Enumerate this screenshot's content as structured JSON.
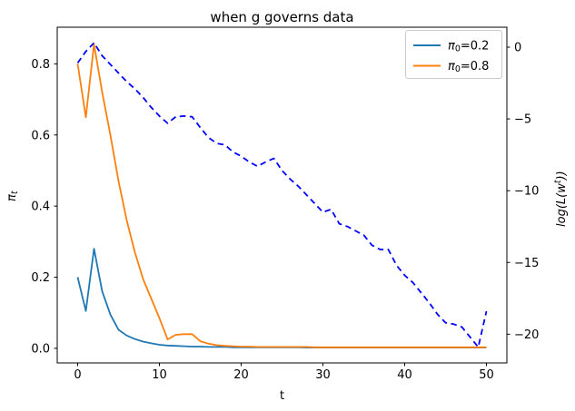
{
  "title": "when g governs data",
  "chart_data": {
    "type": "line",
    "title": "when g governs data",
    "xlabel": "t",
    "ylabel_left": {
      "sym": "π",
      "sub": "t"
    },
    "ylabel_right": {
      "pre": "log(L(w",
      "sup": "t",
      "post": "))"
    },
    "xlim": [
      -2.5,
      52.5
    ],
    "ylim_left": [
      -0.041,
      0.903
    ],
    "ylim_right": [
      -22.0,
      1.39
    ],
    "x_ticks": [
      0,
      10,
      20,
      30,
      40,
      50
    ],
    "x_tick_labels": [
      "0",
      "10",
      "20",
      "30",
      "40",
      "50"
    ],
    "y_ticks_left": [
      0.0,
      0.2,
      0.4,
      0.6,
      0.8
    ],
    "y_tick_labels_left": [
      "0.0",
      "0.2",
      "0.4",
      "0.6",
      "0.8"
    ],
    "y_ticks_right": [
      0,
      -5,
      -10,
      -15,
      -20
    ],
    "y_tick_labels_right": [
      "0",
      "−5",
      "−10",
      "−15",
      "−20"
    ],
    "grid": false,
    "legend_position": "upper right",
    "x": [
      0,
      1,
      2,
      3,
      4,
      5,
      6,
      7,
      8,
      9,
      10,
      11,
      12,
      13,
      14,
      15,
      16,
      17,
      18,
      19,
      20,
      21,
      22,
      23,
      24,
      25,
      26,
      27,
      28,
      29,
      30,
      31,
      32,
      33,
      34,
      35,
      36,
      37,
      38,
      39,
      40,
      41,
      42,
      43,
      44,
      45,
      46,
      47,
      48,
      49,
      50
    ],
    "series": [
      {
        "name": "pi0=0.2",
        "axis": "left",
        "color": "#1f77b4",
        "style": "solid",
        "values": [
          0.2,
          0.105,
          0.28,
          0.16,
          0.095,
          0.052,
          0.036,
          0.026,
          0.019,
          0.014,
          0.01,
          0.008,
          0.007,
          0.006,
          0.005,
          0.005,
          0.004,
          0.004,
          0.004,
          0.003,
          0.003,
          0.003,
          0.003,
          0.003,
          0.003,
          0.003,
          0.003,
          0.003,
          0.002,
          0.002,
          0.002,
          0.002,
          0.002,
          0.002,
          0.002,
          0.002,
          0.002,
          0.002,
          0.002,
          0.002,
          0.002,
          0.002,
          0.002,
          0.002,
          0.002,
          0.002,
          0.002,
          0.002,
          0.002,
          0.002,
          0.002
        ]
      },
      {
        "name": "pi0=0.8",
        "axis": "left",
        "color": "#ff7f0e",
        "style": "solid",
        "values": [
          0.8,
          0.65,
          0.855,
          0.72,
          0.6,
          0.47,
          0.36,
          0.27,
          0.195,
          0.14,
          0.085,
          0.025,
          0.038,
          0.04,
          0.04,
          0.02,
          0.013,
          0.009,
          0.007,
          0.006,
          0.005,
          0.005,
          0.004,
          0.004,
          0.004,
          0.004,
          0.004,
          0.004,
          0.004,
          0.003,
          0.003,
          0.003,
          0.003,
          0.003,
          0.003,
          0.003,
          0.003,
          0.003,
          0.003,
          0.003,
          0.003,
          0.003,
          0.003,
          0.003,
          0.003,
          0.003,
          0.003,
          0.003,
          0.003,
          0.003,
          0.003
        ]
      },
      {
        "name": "log-likelihood",
        "axis": "right",
        "color": "#0000ff",
        "style": "dashed",
        "values": [
          -1.1,
          -0.3,
          0.3,
          -0.6,
          -1.2,
          -1.8,
          -2.4,
          -2.9,
          -3.5,
          -4.2,
          -4.8,
          -5.3,
          -4.85,
          -4.8,
          -4.85,
          -5.6,
          -6.3,
          -6.7,
          -6.8,
          -7.3,
          -7.6,
          -8.0,
          -8.3,
          -8.0,
          -7.75,
          -8.6,
          -9.2,
          -9.7,
          -10.3,
          -10.9,
          -11.5,
          -11.3,
          -12.3,
          -12.5,
          -12.8,
          -13.1,
          -13.8,
          -14.1,
          -14.1,
          -15.2,
          -15.9,
          -16.4,
          -17.1,
          -17.8,
          -18.6,
          -19.2,
          -19.3,
          -19.5,
          -20.2,
          -20.9,
          -18.4
        ]
      }
    ],
    "legend": {
      "items": [
        {
          "sym": "π",
          "sub": "0",
          "rest": "=0.2",
          "color": "#1f77b4"
        },
        {
          "sym": "π",
          "sub": "0",
          "rest": "=0.8",
          "color": "#ff7f0e"
        }
      ]
    }
  }
}
